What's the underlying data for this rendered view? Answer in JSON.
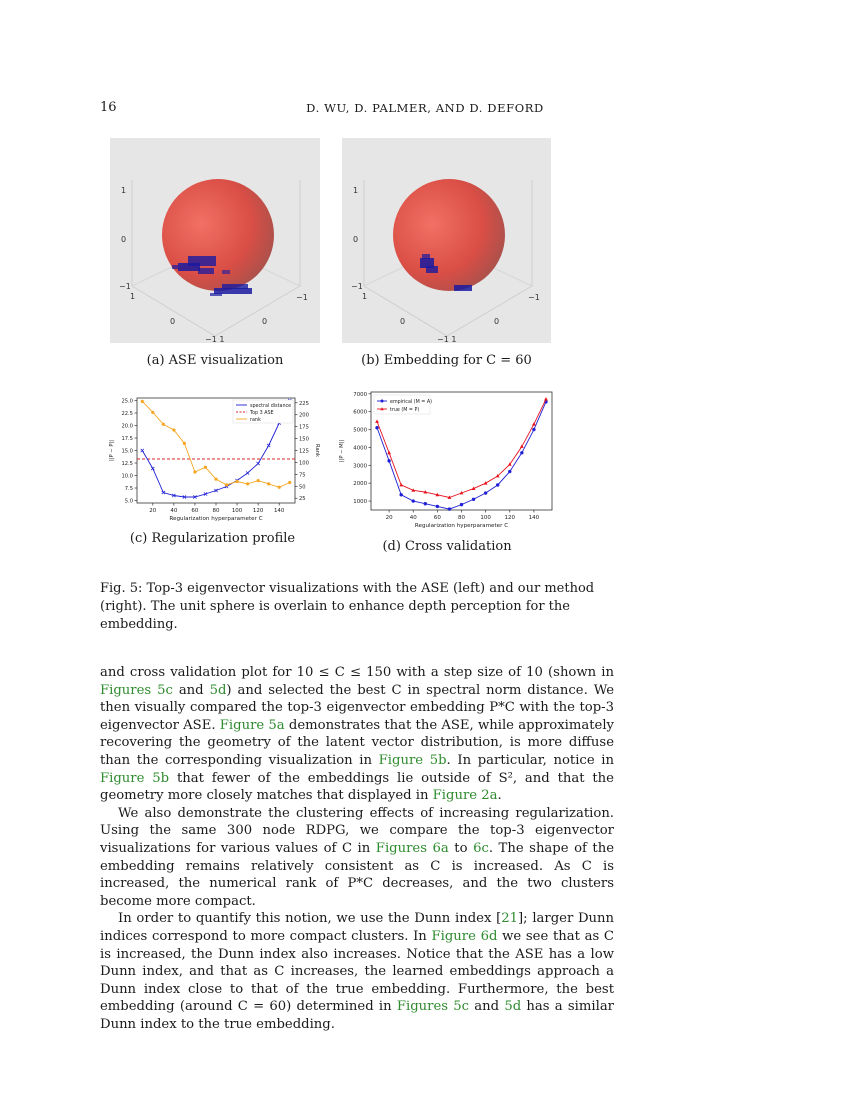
{
  "header": {
    "page_number": "16",
    "authors": "D. WU, D. PALMER, AND D. DEFORD"
  },
  "panels": {
    "a": {
      "caption": "(a) ASE visualization",
      "axis_ticks": {
        "z_top": "1",
        "z_mid": "0",
        "z_bot": "−1",
        "left_edge": "1",
        "right_edge": "−1",
        "front_left": "0",
        "front_right": "0",
        "bottom": "−1 1"
      },
      "sphere_color": "#e74c3c",
      "point_color": "#1a1aa0"
    },
    "b": {
      "caption": "(b) Embedding for C = 60",
      "axis_ticks": {
        "z_top": "1",
        "z_mid": "0",
        "z_bot": "−1",
        "left_edge": "1",
        "right_edge": "−1",
        "front_left": "0",
        "front_right": "0",
        "bottom": "−1 1"
      }
    },
    "c": {
      "caption": "(c) Regularization profile"
    },
    "d": {
      "caption": "(d) Cross validation"
    }
  },
  "chart_data": [
    {
      "type": "line",
      "x": [
        10,
        20,
        30,
        40,
        50,
        60,
        70,
        80,
        90,
        100,
        110,
        120,
        130,
        140,
        150
      ],
      "xlabel": "Regularization hyperparameter C",
      "ylabel": "||P − P||",
      "y2label": "Rank",
      "xticks": [
        20,
        40,
        60,
        80,
        100,
        120,
        140
      ],
      "yticks": [
        "5.0",
        "7.5",
        "10.0",
        "12.5",
        "15.0",
        "17.5",
        "20.0",
        "22.5",
        "25.0"
      ],
      "y2ticks": [
        "25",
        "50",
        "75",
        "100",
        "125",
        "150",
        "175",
        "200",
        "225"
      ],
      "xlim": [
        5,
        155
      ],
      "ylim": [
        4.5,
        25.5
      ],
      "y2lim": [
        15,
        235
      ],
      "hline": {
        "name": "Top 3 ASE",
        "value": 13.3,
        "color": "#d62728"
      },
      "series": [
        {
          "name": "spectral distance",
          "axis": "left",
          "color": "#1f1fd6",
          "marker": "x",
          "values": [
            15.0,
            11.4,
            6.6,
            6.0,
            5.7,
            5.7,
            6.3,
            7.0,
            7.8,
            9.0,
            10.5,
            12.4,
            16.0,
            20.5,
            25.0
          ]
        },
        {
          "name": "rank",
          "axis": "right",
          "color": "#f5a623",
          "marker": "o",
          "values": [
            228,
            205,
            180,
            168,
            140,
            80,
            90,
            65,
            53,
            60,
            55,
            62,
            55,
            48,
            58
          ]
        }
      ],
      "legend_position": "top-right"
    },
    {
      "type": "line",
      "x": [
        10,
        20,
        30,
        40,
        50,
        60,
        70,
        80,
        90,
        100,
        110,
        120,
        130,
        140,
        150
      ],
      "xlabel": "Regularization hyperparameter C",
      "ylabel": "||P − M||",
      "xticks": [
        20,
        40,
        60,
        80,
        100,
        120,
        140
      ],
      "yticks": [
        1000,
        2000,
        3000,
        4000,
        5000,
        6000,
        7000
      ],
      "xlim": [
        5,
        155
      ],
      "ylim": [
        500,
        7100
      ],
      "series": [
        {
          "name": "empirical (M = A)",
          "color": "#1f1fd6",
          "marker": "o",
          "values": [
            5100,
            3250,
            1350,
            1000,
            850,
            700,
            550,
            800,
            1100,
            1450,
            1900,
            2650,
            3700,
            5000,
            6550
          ]
        },
        {
          "name": "true (M = P)",
          "color": "#e8141e",
          "marker": "^",
          "values": [
            5450,
            3700,
            1900,
            1600,
            1500,
            1350,
            1200,
            1450,
            1700,
            2000,
            2400,
            3050,
            4050,
            5300,
            6700
          ]
        }
      ],
      "legend_position": "top-left"
    }
  ],
  "figure_caption": "Fig. 5: Top-3 eigenvector visualizations with the ASE (left) and our method (right). The unit sphere is overlain to enhance depth perception for the embedding.",
  "body": {
    "p1": {
      "t1": "and cross validation plot for 10 ≤ C ≤ 150 with a step size of 10 (shown in ",
      "r1": "Figures 5c",
      "t2": " and ",
      "r2": "5d",
      "t3": ") and selected the best C in spectral norm distance. We then visually compared the top-3 eigenvector embedding P*C with the top-3 eigenvector ASE. ",
      "r3": "Figure 5a",
      "t4": " demonstrates that the ASE, while approximately recovering the geometry of the latent vector distribution, is more diffuse than the corresponding visualization in ",
      "r4": "Figure 5b",
      "t5": ". In particular, notice in ",
      "r5": "Figure 5b",
      "t6": " that fewer of the embeddings lie outside of S², and that the geometry more closely matches that displayed in ",
      "r6": "Figure 2a",
      "t7": "."
    },
    "p2": {
      "t1": "We also demonstrate the clustering effects of increasing regularization. Using the same 300 node RDPG, we compare the top-3 eigenvector visualizations for various values of C in ",
      "r1": "Figures 6a",
      "t2": " to ",
      "r2": "6c",
      "t3": ". The shape of the embedding remains relatively consistent as C is increased. As C is increased, the numerical rank of P*C decreases, and the two clusters become more compact."
    },
    "p3": {
      "t1": "In order to quantify this notion, we use the Dunn index [",
      "r1": "21",
      "t2": "]; larger Dunn indices correspond to more compact clusters. In ",
      "r2": "Figure 6d",
      "t3": " we see that as C is increased, the Dunn index also increases. Notice that the ASE has a low Dunn index, and that as C increases, the learned embeddings approach a Dunn index close to that of the true embedding. Furthermore, the best embedding (around C = 60) determined in ",
      "r3": "Figures 5c",
      "t4": " and ",
      "r4": "5d",
      "t5": " has a similar Dunn index to the true embedding."
    }
  }
}
